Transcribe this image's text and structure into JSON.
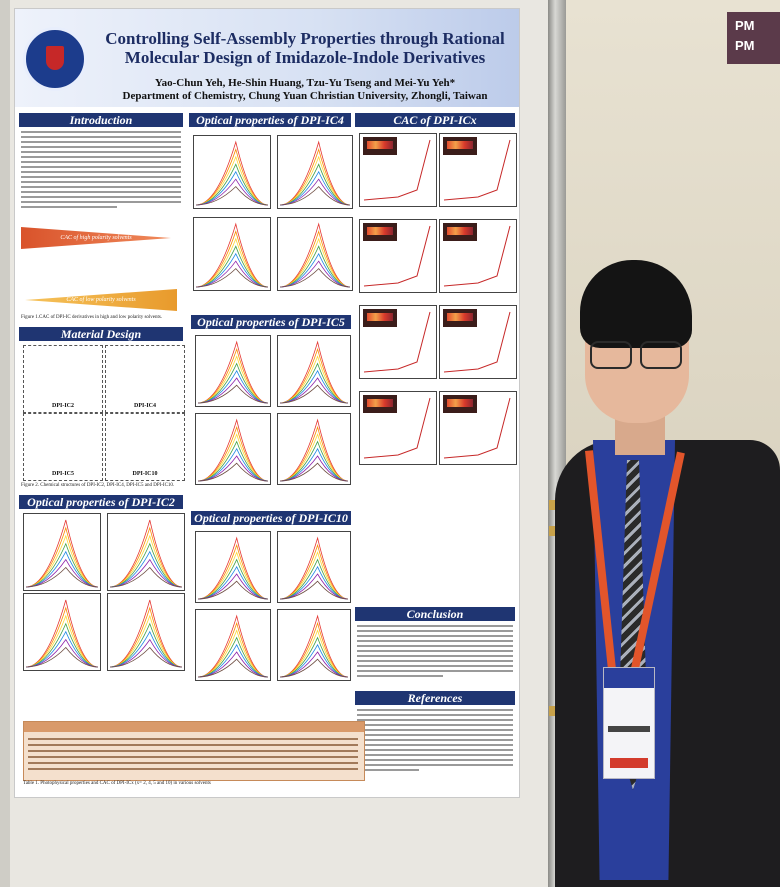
{
  "sign": {
    "line1": "PM",
    "line2": "PM"
  },
  "poster": {
    "title_line1": "Controlling Self-Assembly Properties through Rational",
    "title_line2": "Molecular Design of Imidazole-Indole Derivatives",
    "authors": "Yao-Chun Yeh, He-Shin Huang, Tzu-Yu Tseng and Mei-Yu Yeh*",
    "affiliation": "Department of Chemistry, Chung Yuan Christian University, Zhongli, Taiwan",
    "sections": {
      "introduction": "Introduction",
      "material_design": "Material Design",
      "optical_ic2": "Optical properties of DPI-IC2",
      "optical_ic4": "Optical properties of DPI-IC4",
      "optical_ic5": "Optical properties of DPI-IC5",
      "optical_ic10": "Optical properties of DPI-IC10",
      "cac": "CAC of DPI-ICx",
      "conclusion": "Conclusion",
      "references": "References"
    },
    "cac_high": "CAC of high polarity solvents",
    "cac_low": "CAC of low polarity solvents",
    "structures": [
      "DPI-IC2",
      "DPI-IC4",
      "DPI-IC5",
      "DPI-IC10"
    ],
    "captions": {
      "fig1": "Figure 1.CAC of DPI-IC derivatives in high and low polarity solvents.",
      "fig2": "Figure 2. Chemical structures of DPI-IC2, DPI-IC4, DPI-IC5 and DPI-IC10.",
      "table1": "Table 1. Photophysical properties and CAC of DPI-ICx (x= 2, 4, 5 and 10) in various solvents"
    }
  },
  "colors": {
    "section_bar": "#1f3572",
    "cac_high": "#d9532b",
    "cac_low": "#e89a2c",
    "jacket": "#1e1d1f",
    "shirt": "#2a3f9c",
    "lanyard": "#e2552b"
  }
}
